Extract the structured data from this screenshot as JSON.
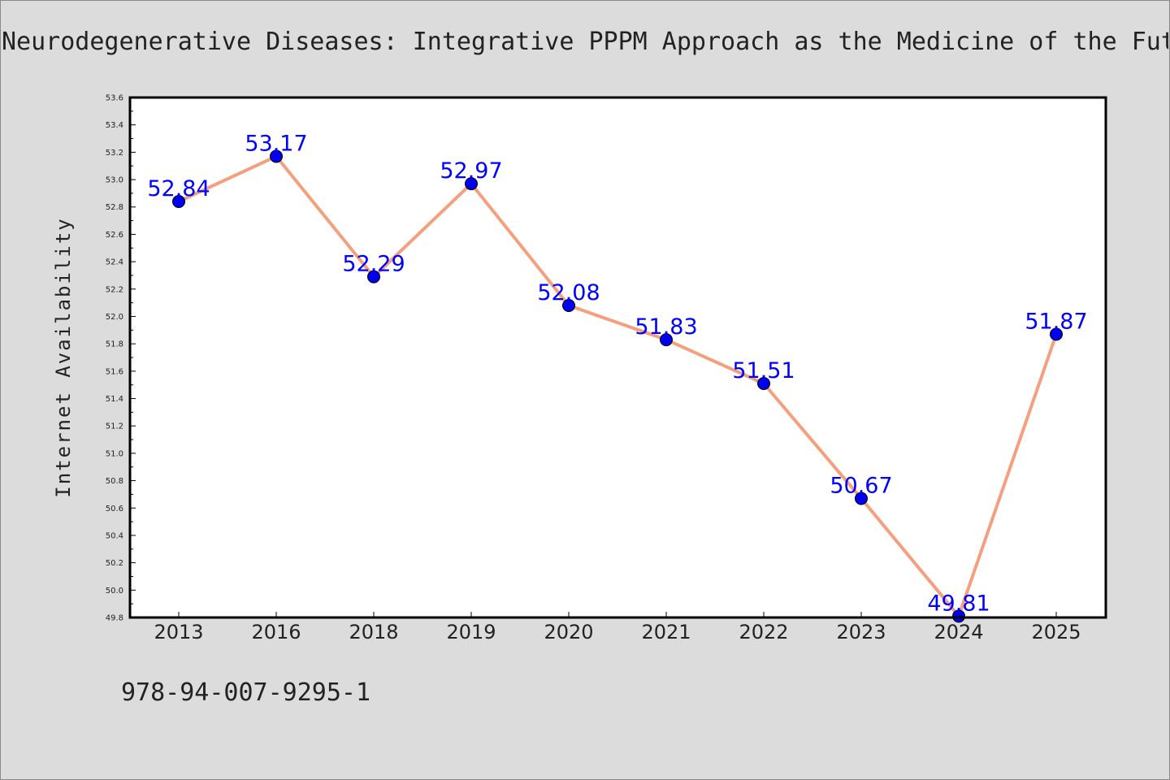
{
  "header": {
    "title": "Neurodegenerative Diseases: Integrative PPPM Approach as the Medicine of the Fut"
  },
  "footer": {
    "isbn": "978-94-007-9295-1"
  },
  "colors": {
    "background": "#dcdcdc",
    "plot_background": "#ffffff",
    "line": "#f4a07e",
    "marker": "#0000ee",
    "data_label": "#0000ff",
    "axis_text": "#222222"
  },
  "chart_data": {
    "type": "line",
    "title": "Neurodegenerative Diseases: Integrative PPPM Approach as the Medicine of the Fut",
    "xlabel": "",
    "ylabel": "Internet Availability",
    "categories": [
      "2013",
      "2016",
      "2018",
      "2019",
      "2020",
      "2021",
      "2022",
      "2023",
      "2024",
      "2025"
    ],
    "series": [
      {
        "values": [
          52.84,
          53.17,
          52.29,
          52.97,
          52.08,
          51.83,
          51.51,
          50.67,
          49.81,
          51.87
        ],
        "labels": [
          "52.84",
          "53.17",
          "52.29",
          "52.97",
          "52.08",
          "51.83",
          "51.51",
          "50.67",
          "49.81",
          "51.87"
        ]
      }
    ],
    "ylim": [
      49.8,
      53.6
    ],
    "yticks": [
      "49.8",
      "50.0",
      "50.2",
      "50.4",
      "50.6",
      "50.8",
      "51.0",
      "51.2",
      "51.4",
      "51.6",
      "51.8",
      "52.0",
      "52.2",
      "52.4",
      "52.6",
      "52.8",
      "53.0",
      "53.2",
      "53.4",
      "53.6"
    ],
    "grid": false,
    "legend": "none"
  }
}
